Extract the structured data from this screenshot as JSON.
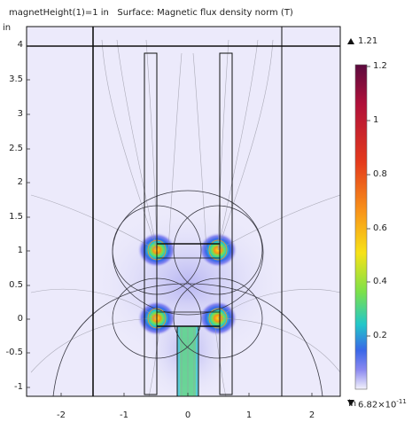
{
  "title": "magnetHeight(1)=1 in   Surface: Magnetic flux density norm (T)",
  "y_unit": "in",
  "x_unit": "in",
  "y_ticks": [
    "4",
    "3.5",
    "3",
    "2.5",
    "2",
    "1.5",
    "1",
    "0.5",
    "0",
    "-0.5",
    "-1"
  ],
  "x_ticks": [
    "-2",
    "-1",
    "0",
    "1",
    "2"
  ],
  "max_label": "1.21",
  "min_label": "6.82×10",
  "min_exp": "-11",
  "colorbar": {
    "ticks": [
      "1.2",
      "1",
      "0.8",
      "0.6",
      "0.4",
      "0.2"
    ],
    "colors": [
      "#5b0a3e",
      "#b0103a",
      "#e43a1c",
      "#f8931a",
      "#f7e217",
      "#7ce14a",
      "#22c7c9",
      "#3a67e8",
      "#8a88f0",
      "#f3f2fb"
    ]
  },
  "icons": {
    "max": "up-triangle-icon",
    "min": "down-triangle-icon"
  }
}
